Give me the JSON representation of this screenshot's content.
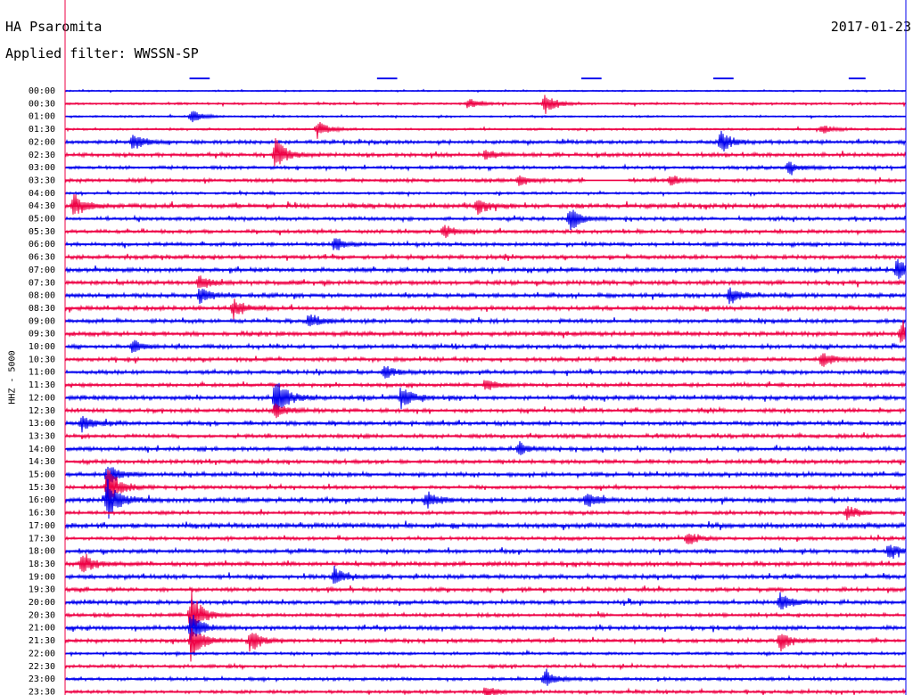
{
  "header": {
    "station": "HA Psaromita",
    "date": "2017-01-23",
    "filter": "Applied filter: WWSSN-SP"
  },
  "chart_data": {
    "type": "line",
    "title": "HA Psaromita",
    "date": "2017-01-23",
    "filter": "WWSSN-SP",
    "ylabel": "HHZ - 5000",
    "row_labels": [
      "00:00",
      "00:30",
      "01:00",
      "01:30",
      "02:00",
      "02:30",
      "03:00",
      "03:30",
      "04:00",
      "04:30",
      "05:00",
      "05:30",
      "06:00",
      "06:30",
      "07:00",
      "07:30",
      "08:00",
      "08:30",
      "09:00",
      "09:30",
      "10:00",
      "10:30",
      "11:00",
      "11:30",
      "12:00",
      "12:30",
      "13:00",
      "13:30",
      "14:00",
      "14:30",
      "15:00",
      "15:30",
      "16:00",
      "16:30",
      "17:00",
      "17:30",
      "18:00",
      "18:30",
      "19:00",
      "19:30",
      "20:00",
      "20:30",
      "21:00",
      "21:30",
      "22:00",
      "22:30",
      "23:00",
      "23:30"
    ],
    "series_colors": [
      "#0000ee",
      "#ee0044"
    ],
    "row_amplitude": [
      0.4,
      0.6,
      0.5,
      0.6,
      1.0,
      1.1,
      0.9,
      1.0,
      0.7,
      1.3,
      1.0,
      1.0,
      1.0,
      1.1,
      1.2,
      1.2,
      1.2,
      1.2,
      1.1,
      1.3,
      1.1,
      1.1,
      1.1,
      1.0,
      1.2,
      1.1,
      1.1,
      1.1,
      1.1,
      1.1,
      1.2,
      1.0,
      1.3,
      1.0,
      1.4,
      1.0,
      1.1,
      1.2,
      1.2,
      1.1,
      1.1,
      1.0,
      1.1,
      1.0,
      0.8,
      0.9,
      0.9,
      0.9
    ],
    "events": [
      {
        "row": 1,
        "x": 0.48,
        "a": 6
      },
      {
        "row": 1,
        "x": 0.57,
        "a": 13
      },
      {
        "row": 2,
        "x": 0.15,
        "a": 8
      },
      {
        "row": 3,
        "x": 0.3,
        "a": 10
      },
      {
        "row": 3,
        "x": 0.9,
        "a": 6
      },
      {
        "row": 4,
        "x": 0.08,
        "a": 12
      },
      {
        "row": 4,
        "x": 0.78,
        "a": 14
      },
      {
        "row": 5,
        "x": 0.25,
        "a": 20
      },
      {
        "row": 5,
        "x": 0.5,
        "a": 6
      },
      {
        "row": 6,
        "x": 0.86,
        "a": 8
      },
      {
        "row": 7,
        "x": 0.54,
        "a": 6
      },
      {
        "row": 7,
        "x": 0.72,
        "a": 6
      },
      {
        "row": 9,
        "x": 0.01,
        "a": 16
      },
      {
        "row": 9,
        "x": 0.49,
        "a": 10
      },
      {
        "row": 10,
        "x": 0.6,
        "a": 16
      },
      {
        "row": 11,
        "x": 0.45,
        "a": 8
      },
      {
        "row": 12,
        "x": 0.32,
        "a": 8
      },
      {
        "row": 14,
        "x": 0.99,
        "a": 16
      },
      {
        "row": 15,
        "x": 0.16,
        "a": 10
      },
      {
        "row": 16,
        "x": 0.16,
        "a": 10
      },
      {
        "row": 16,
        "x": 0.79,
        "a": 10
      },
      {
        "row": 17,
        "x": 0.2,
        "a": 10
      },
      {
        "row": 18,
        "x": 0.29,
        "a": 10
      },
      {
        "row": 19,
        "x": 0.995,
        "a": 14
      },
      {
        "row": 20,
        "x": 0.08,
        "a": 8
      },
      {
        "row": 21,
        "x": 0.9,
        "a": 10
      },
      {
        "row": 22,
        "x": 0.38,
        "a": 8
      },
      {
        "row": 23,
        "x": 0.5,
        "a": 8
      },
      {
        "row": 24,
        "x": 0.25,
        "a": 28
      },
      {
        "row": 24,
        "x": 0.4,
        "a": 14
      },
      {
        "row": 25,
        "x": 0.25,
        "a": 10
      },
      {
        "row": 26,
        "x": 0.02,
        "a": 10
      },
      {
        "row": 28,
        "x": 0.54,
        "a": 8
      },
      {
        "row": 30,
        "x": 0.05,
        "a": 14
      },
      {
        "row": 31,
        "x": 0.05,
        "a": 26
      },
      {
        "row": 32,
        "x": 0.05,
        "a": 26
      },
      {
        "row": 32,
        "x": 0.43,
        "a": 10
      },
      {
        "row": 32,
        "x": 0.62,
        "a": 10
      },
      {
        "row": 33,
        "x": 0.93,
        "a": 10
      },
      {
        "row": 35,
        "x": 0.74,
        "a": 8
      },
      {
        "row": 36,
        "x": 0.98,
        "a": 10
      },
      {
        "row": 37,
        "x": 0.02,
        "a": 14
      },
      {
        "row": 38,
        "x": 0.32,
        "a": 10
      },
      {
        "row": 40,
        "x": 0.85,
        "a": 12
      },
      {
        "row": 41,
        "x": 0.15,
        "a": 28
      },
      {
        "row": 42,
        "x": 0.15,
        "a": 18
      },
      {
        "row": 43,
        "x": 0.15,
        "a": 26
      },
      {
        "row": 43,
        "x": 0.22,
        "a": 14
      },
      {
        "row": 43,
        "x": 0.85,
        "a": 12
      },
      {
        "row": 46,
        "x": 0.57,
        "a": 10
      },
      {
        "row": 47,
        "x": 0.5,
        "a": 8
      }
    ],
    "gaps": [
      {
        "row": 7,
        "x0": 0.62,
        "x1": 0.67
      }
    ],
    "minute_marks": [
      {
        "x0": 0.148,
        "x1": 0.172
      },
      {
        "x0": 0.371,
        "x1": 0.395
      },
      {
        "x0": 0.614,
        "x1": 0.638
      },
      {
        "x0": 0.771,
        "x1": 0.795
      },
      {
        "x0": 0.932,
        "x1": 0.952
      }
    ]
  }
}
